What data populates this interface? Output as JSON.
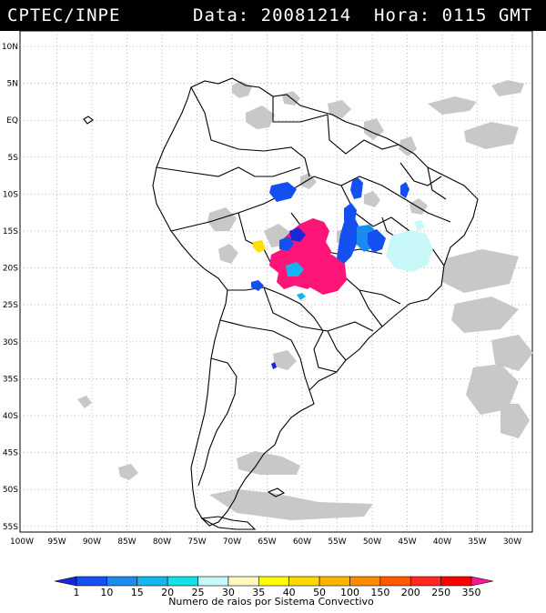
{
  "header": {
    "source": "CPTEC/INPE",
    "datetime": "Data: 20081214  Hora: 0115 GMT"
  },
  "map": {
    "lon_labels": [
      "100W",
      "95W",
      "90W",
      "85W",
      "80W",
      "75W",
      "70W",
      "65W",
      "60W",
      "55W",
      "50W",
      "45W",
      "40W",
      "35W",
      "30W"
    ],
    "lat_labels": [
      "10N",
      "5N",
      "EQ",
      "5S",
      "10S",
      "15S",
      "20S",
      "25S",
      "30S",
      "35S",
      "40S",
      "45S",
      "50S",
      "55S"
    ]
  },
  "colorbar": {
    "ticks": [
      "1",
      "10",
      "15",
      "20",
      "25",
      "30",
      "35",
      "40",
      "50",
      "100",
      "150",
      "200",
      "250",
      "350"
    ],
    "colors": [
      "#1a28d8",
      "#1450f0",
      "#1a8cf0",
      "#16b4f0",
      "#14e0ec",
      "#c8f8f8",
      "#fff8c0",
      "#ffff00",
      "#ffd800",
      "#ffb400",
      "#ff8c00",
      "#ff5a00",
      "#ff2a1e",
      "#ff0000",
      "#ff1493"
    ],
    "caption": "Numero de raios por Sistema Convectivo"
  },
  "legend_colors": {
    "land_outline": "#000000",
    "grid": "#9a9a9a",
    "cloud": "#c8c8c8",
    "high_activity": "#ff1477"
  }
}
